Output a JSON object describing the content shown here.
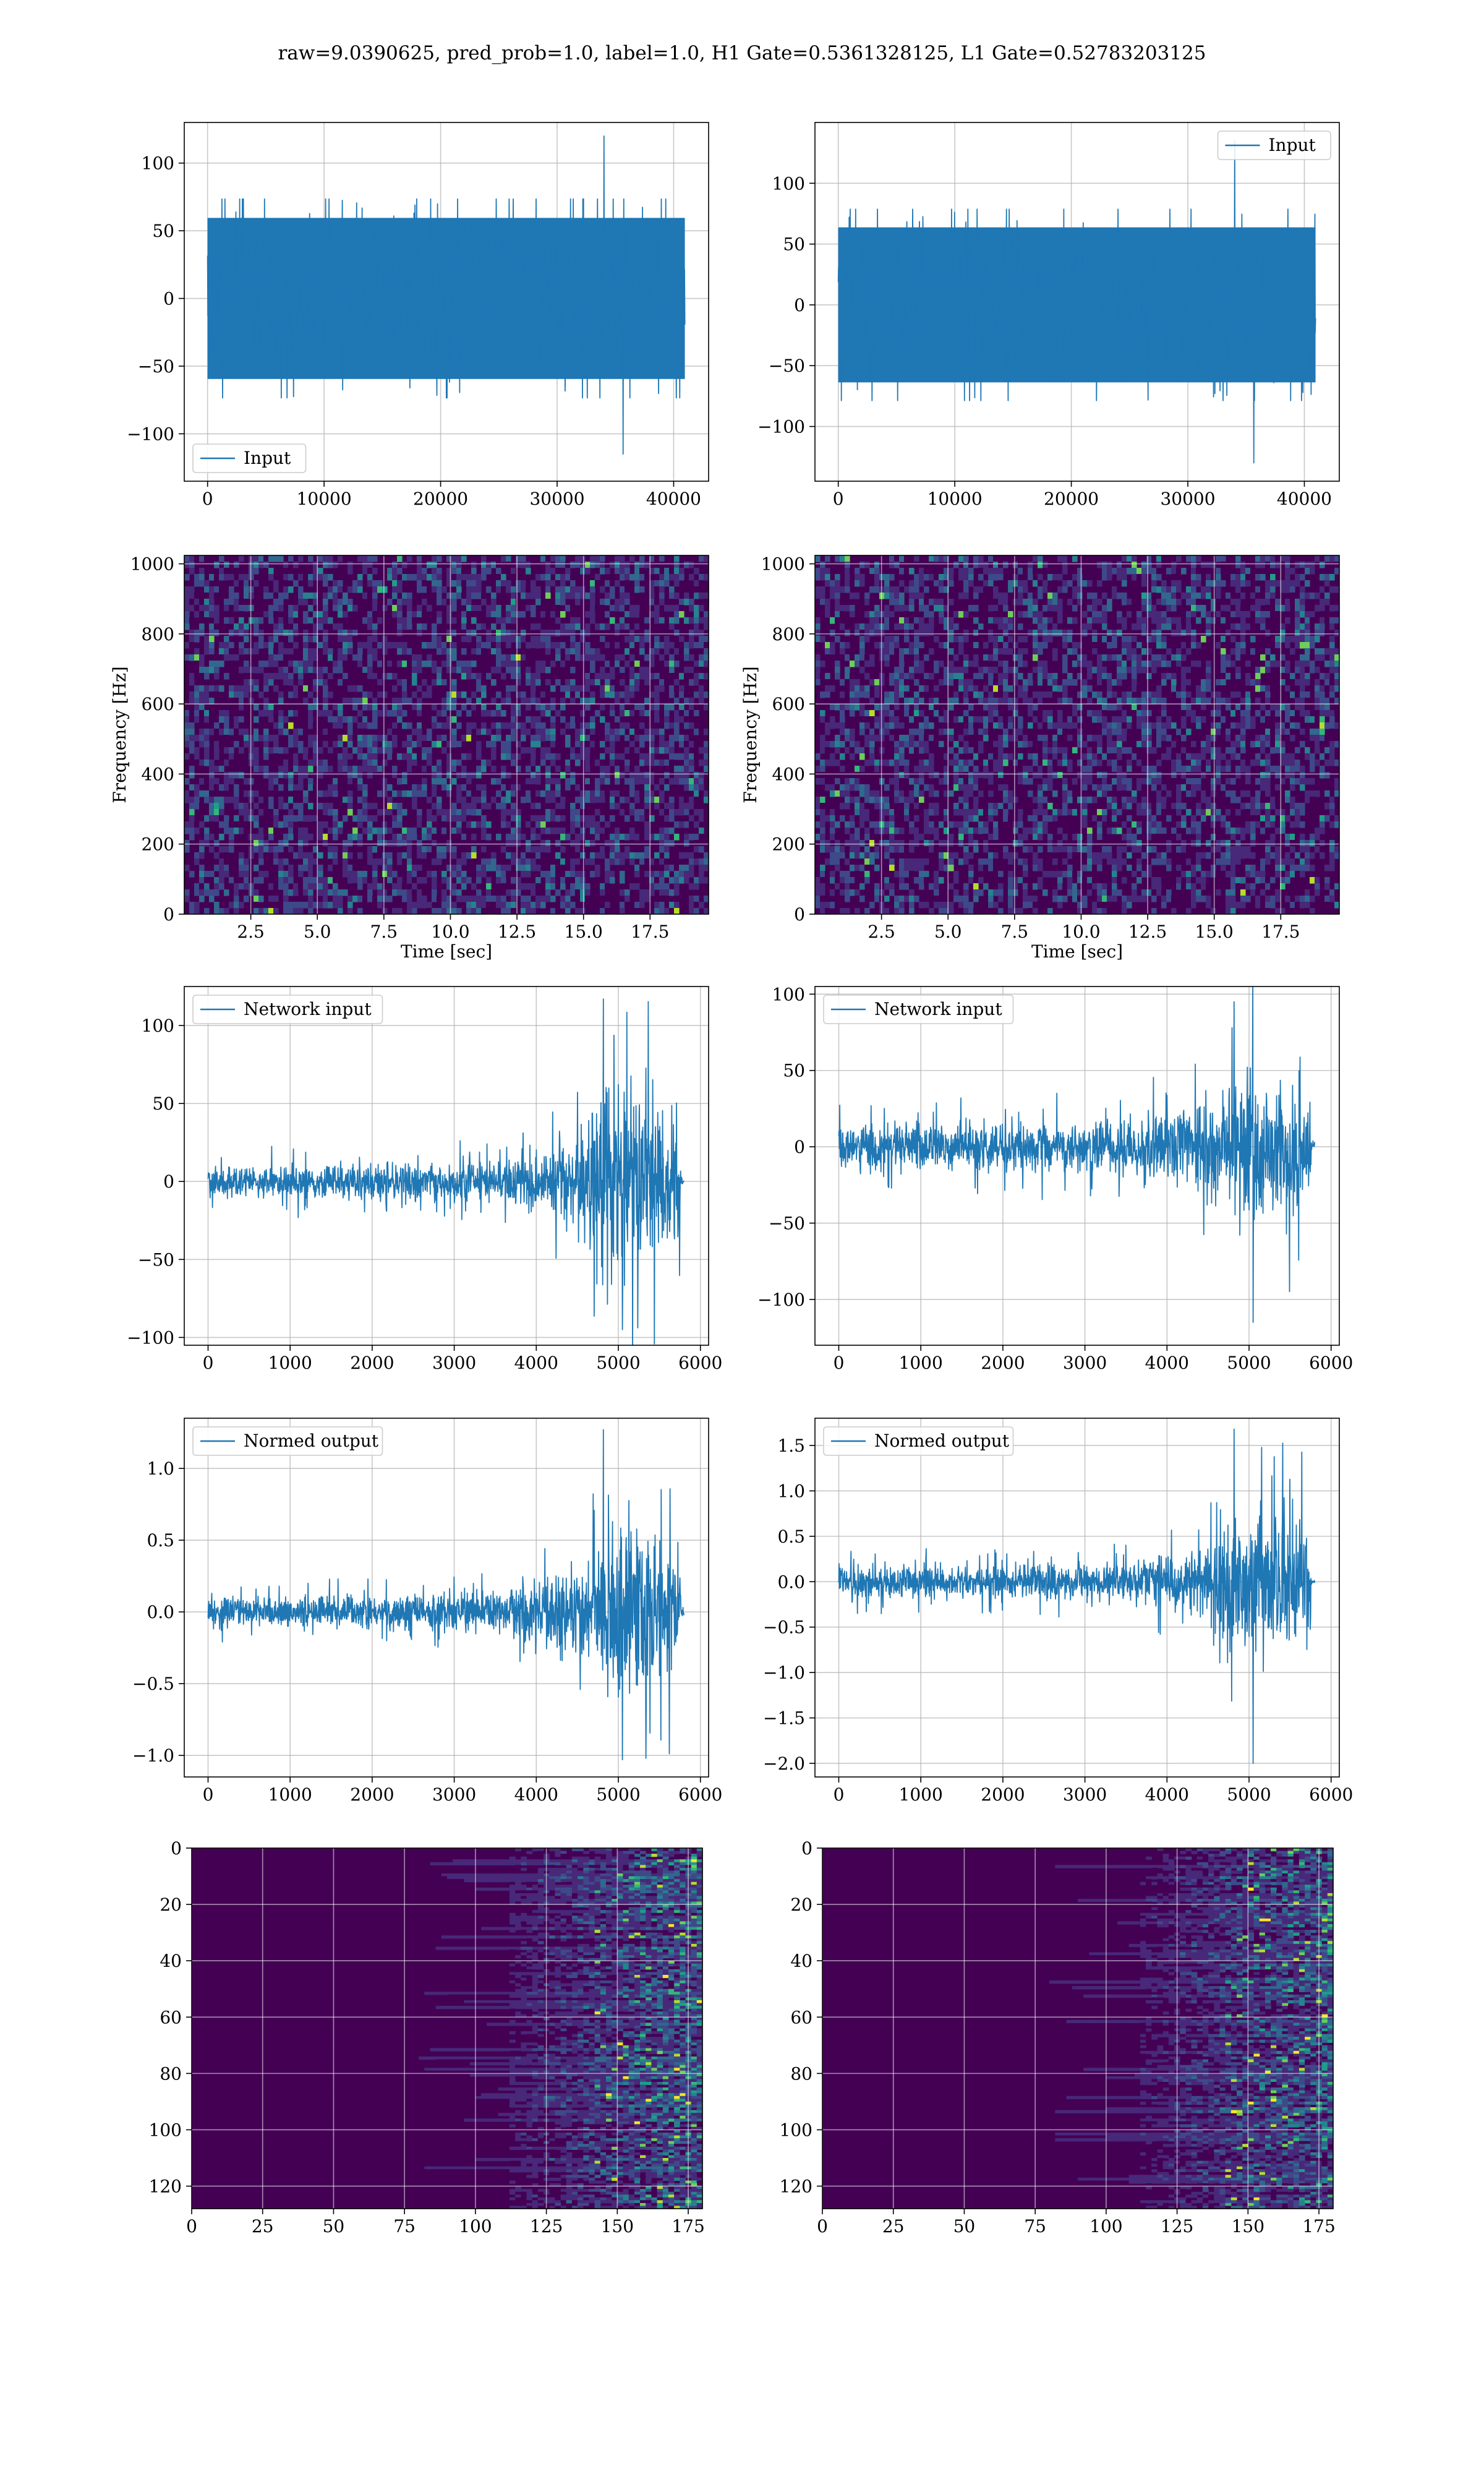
{
  "figure_title": "raw=9.0390625, pred_prob=1.0, label=1.0, H1 Gate=0.5361328125, L1 Gate=0.52783203125",
  "colors": {
    "line": "#1f77b4",
    "viridis_dark": "#440154",
    "viridis_mid": "#31688e",
    "viridis_teal": "#21918c",
    "viridis_green": "#35b779",
    "viridis_yellow": "#fde725",
    "grid": "#b0b0b0"
  },
  "chart_data": [
    {
      "id": "input-h1",
      "type": "line",
      "legend": "Input",
      "legend_position": "lower-left",
      "xlim": [
        -2000,
        43000
      ],
      "ylim": [
        -135,
        130
      ],
      "xticks": [
        0,
        10000,
        20000,
        30000,
        40000
      ],
      "yticks": [
        -100,
        -50,
        0,
        50,
        100
      ],
      "grid": true,
      "series": [
        {
          "name": "Input",
          "x_range": [
            0,
            40960
          ],
          "band": [
            -70,
            70
          ],
          "peaks": [
            120,
            -115
          ]
        }
      ]
    },
    {
      "id": "input-l1",
      "type": "line",
      "legend": "Input",
      "legend_position": "upper-right",
      "xlim": [
        -2000,
        43000
      ],
      "ylim": [
        -145,
        150
      ],
      "xticks": [
        0,
        10000,
        20000,
        30000,
        40000
      ],
      "yticks": [
        -100,
        -50,
        0,
        50,
        100
      ],
      "grid": true,
      "series": [
        {
          "name": "Input",
          "x_range": [
            0,
            40960
          ],
          "band": [
            -75,
            75
          ],
          "peaks": [
            135,
            -130
          ]
        }
      ]
    },
    {
      "id": "spectrogram-h1",
      "type": "heatmap",
      "xlabel": "Time [sec]",
      "ylabel": "Frequency [Hz]",
      "xlim": [
        0,
        19.7
      ],
      "ylim": [
        0,
        1024
      ],
      "xticks": [
        2.5,
        5.0,
        7.5,
        10.0,
        12.5,
        15.0,
        17.5
      ],
      "yticks": [
        0,
        200,
        400,
        600,
        800,
        1000
      ],
      "grid": true
    },
    {
      "id": "spectrogram-l1",
      "type": "heatmap",
      "xlabel": "Time [sec]",
      "ylabel": "Frequency [Hz]",
      "xlim": [
        0,
        19.7
      ],
      "ylim": [
        0,
        1024
      ],
      "xticks": [
        2.5,
        5.0,
        7.5,
        10.0,
        12.5,
        15.0,
        17.5
      ],
      "yticks": [
        0,
        200,
        400,
        600,
        800,
        1000
      ],
      "grid": true
    },
    {
      "id": "network-input-h1",
      "type": "line",
      "legend": "Network input",
      "legend_position": "upper-left",
      "xlim": [
        -290,
        6100
      ],
      "ylim": [
        -105,
        125
      ],
      "xticks": [
        0,
        1000,
        2000,
        3000,
        4000,
        5000,
        6000
      ],
      "yticks": [
        -100,
        -50,
        0,
        50,
        100
      ],
      "grid": true,
      "series": [
        {
          "name": "Network input",
          "x_range": [
            0,
            5800
          ],
          "envelope": [
            [
              0,
              15
            ],
            [
              3500,
              20
            ],
            [
              4500,
              45
            ],
            [
              5000,
              100
            ],
            [
              5750,
              70
            ],
            [
              5760,
              5
            ]
          ],
          "peaks": [
            117,
            -95
          ]
        }
      ]
    },
    {
      "id": "network-input-l1",
      "type": "line",
      "legend": "Network input",
      "legend_position": "upper-left",
      "xlim": [
        -290,
        6100
      ],
      "ylim": [
        -130,
        105
      ],
      "xticks": [
        0,
        1000,
        2000,
        3000,
        4000,
        5000,
        6000
      ],
      "yticks": [
        -100,
        -50,
        0,
        50,
        100
      ],
      "grid": true,
      "series": [
        {
          "name": "Network input",
          "x_range": [
            0,
            5800
          ],
          "envelope": [
            [
              0,
              20
            ],
            [
              3500,
              28
            ],
            [
              4500,
              50
            ],
            [
              5000,
              80
            ],
            [
              5750,
              65
            ],
            [
              5760,
              5
            ]
          ],
          "peaks": [
            95,
            -115
          ]
        }
      ]
    },
    {
      "id": "normed-output-h1",
      "type": "line",
      "legend": "Normed output",
      "legend_position": "upper-left",
      "xlim": [
        -290,
        6100
      ],
      "ylim": [
        -1.15,
        1.35
      ],
      "xticks": [
        0,
        1000,
        2000,
        3000,
        4000,
        5000,
        6000
      ],
      "yticks": [
        -1.0,
        -0.5,
        0.0,
        0.5,
        1.0
      ],
      "grid": true,
      "series": [
        {
          "name": "Normed output",
          "x_range": [
            0,
            5800
          ],
          "envelope": [
            [
              0,
              0.15
            ],
            [
              3500,
              0.2
            ],
            [
              4500,
              0.45
            ],
            [
              5000,
              1.0
            ],
            [
              5750,
              0.75
            ],
            [
              5760,
              0.05
            ]
          ],
          "peaks": [
            1.27,
            -1.03
          ]
        }
      ]
    },
    {
      "id": "normed-output-l1",
      "type": "line",
      "legend": "Normed output",
      "legend_position": "upper-left",
      "xlim": [
        -290,
        6100
      ],
      "ylim": [
        -2.15,
        1.8
      ],
      "xticks": [
        0,
        1000,
        2000,
        3000,
        4000,
        5000,
        6000
      ],
      "yticks": [
        -2.0,
        -1.5,
        -1.0,
        -0.5,
        0.0,
        0.5,
        1.0,
        1.5
      ],
      "grid": true,
      "series": [
        {
          "name": "Normed output",
          "x_range": [
            0,
            5800
          ],
          "envelope": [
            [
              0,
              0.25
            ],
            [
              3500,
              0.3
            ],
            [
              4500,
              0.6
            ],
            [
              5000,
              1.2
            ],
            [
              5750,
              1.0
            ],
            [
              5760,
              0.05
            ]
          ],
          "peaks": [
            1.68,
            -2.0
          ]
        }
      ]
    },
    {
      "id": "feature-map-h1",
      "type": "heatmap",
      "xlim": [
        0,
        180
      ],
      "ylim": [
        0,
        128
      ],
      "y_inverted": true,
      "xticks": [
        0,
        25,
        50,
        75,
        100,
        125,
        150,
        175
      ],
      "yticks": [
        0,
        20,
        40,
        60,
        80,
        100,
        120
      ],
      "grid": true
    },
    {
      "id": "feature-map-l1",
      "type": "heatmap",
      "xlim": [
        0,
        180
      ],
      "ylim": [
        0,
        128
      ],
      "y_inverted": true,
      "xticks": [
        0,
        25,
        50,
        75,
        100,
        125,
        150,
        175
      ],
      "yticks": [
        0,
        20,
        40,
        60,
        80,
        100,
        120
      ],
      "grid": true
    }
  ]
}
